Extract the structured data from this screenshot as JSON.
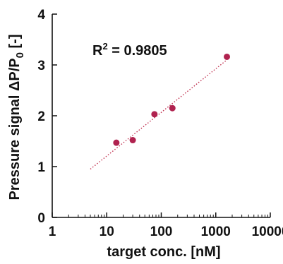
{
  "chart_data": {
    "type": "scatter",
    "title": "",
    "xlabel": "target conc. [nM]",
    "ylabel_parts": {
      "main": "Pressure signal ΔP/P",
      "sub": "0",
      "tail": " [-]"
    },
    "xscale": "log",
    "xlim": [
      1,
      10000
    ],
    "ylim": [
      0,
      4
    ],
    "x_ticks": [
      "1",
      "10",
      "100",
      "1000",
      "10000"
    ],
    "y_ticks": [
      "0",
      "1",
      "2",
      "3",
      "4"
    ],
    "grid": false,
    "annotation": {
      "base": "R",
      "sup": "2",
      "rest": " = 0.9805"
    },
    "points": [
      {
        "x": 15,
        "y": 1.47
      },
      {
        "x": 30,
        "y": 1.52
      },
      {
        "x": 75,
        "y": 2.03
      },
      {
        "x": 160,
        "y": 2.15
      },
      {
        "x": 1600,
        "y": 3.16
      }
    ],
    "trendline": {
      "style": "dotted",
      "x": [
        5,
        1600
      ],
      "y": [
        0.95,
        3.1
      ]
    },
    "colors": {
      "points": "#b0224f",
      "trendline": "#c0304f",
      "axes": "#111111"
    }
  }
}
